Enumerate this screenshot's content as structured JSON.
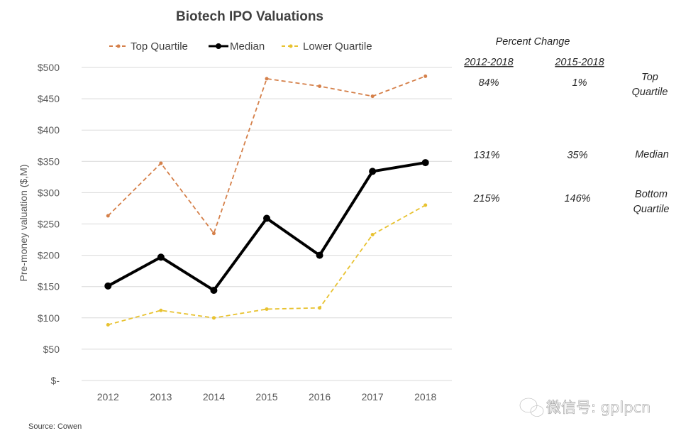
{
  "chart_data": {
    "type": "line",
    "title": "Biotech IPO Valuations",
    "ylabel": "Pre-money valuation ($,M)",
    "xlabel": "",
    "categories": [
      "2012",
      "2013",
      "2014",
      "2015",
      "2016",
      "2017",
      "2018"
    ],
    "ylim": [
      0,
      500
    ],
    "yticks": [
      0,
      50,
      100,
      150,
      200,
      250,
      300,
      350,
      400,
      450,
      500
    ],
    "ytick_labels": [
      "$-",
      "$50",
      "$100",
      "$150",
      "$200",
      "$250",
      "$300",
      "$350",
      "$400",
      "$450",
      "$500"
    ],
    "grid": true,
    "legend_position": "top",
    "series": [
      {
        "name": "Top Quartile",
        "values": [
          263,
          347,
          235,
          482,
          470,
          454,
          486
        ],
        "color": "#d5804a",
        "style": "dashed"
      },
      {
        "name": "Median",
        "values": [
          151,
          197,
          144,
          259,
          200,
          334,
          348
        ],
        "color": "#000000",
        "style": "solid"
      },
      {
        "name": "Lower Quartile",
        "values": [
          89,
          112,
          100,
          114,
          116,
          233,
          280
        ],
        "color": "#e8c230",
        "style": "dashed"
      }
    ],
    "source": "Source: Cowen"
  },
  "percent_change": {
    "heading": "Percent Change",
    "col1_header": "2012-2018",
    "col2_header": "2015-2018",
    "rows": [
      {
        "col1": "84%",
        "col2": "1%",
        "label_line1": "Top",
        "label_line2": "Quartile"
      },
      {
        "col1": "131%",
        "col2": "35%",
        "label_line1": "Median",
        "label_line2": ""
      },
      {
        "col1": "215%",
        "col2": "146%",
        "label_line1": "Bottom",
        "label_line2": "Quartile"
      }
    ]
  },
  "watermark": {
    "text": "微信号: gplpcn",
    "icon": "wechat-icon"
  }
}
